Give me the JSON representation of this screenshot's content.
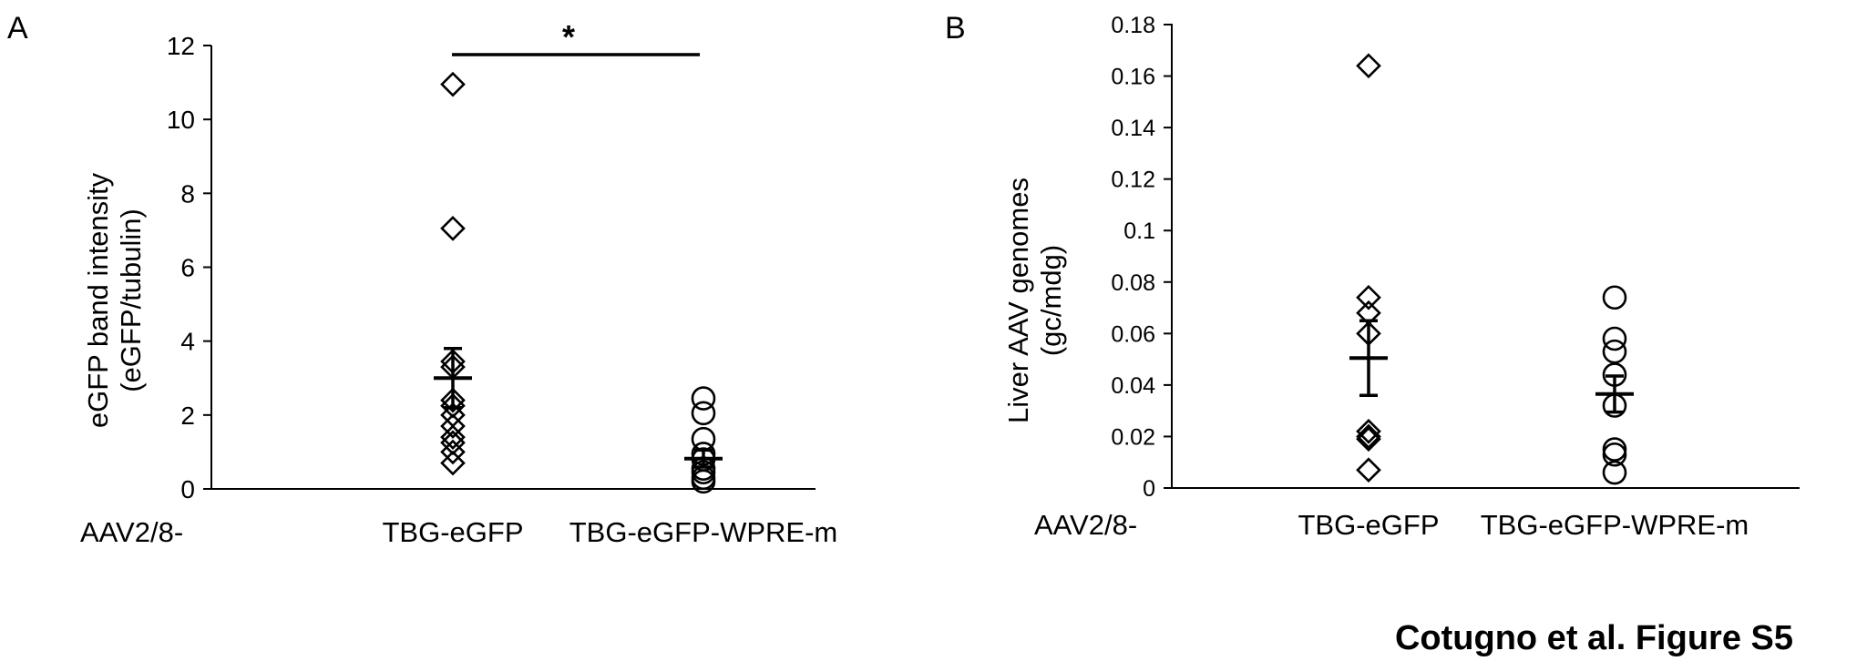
{
  "figure_caption": "Cotugno et al. Figure S5",
  "chart_data": [
    {
      "panel_label": "A",
      "type": "scatter",
      "categories": [
        "TBG-eGFP",
        "TBG-eGFP-WPRE-m"
      ],
      "category_prefix": "AAV2/8-",
      "ylabel_lines": [
        "eGFP band intensity",
        "(eGFP/tubulin)"
      ],
      "ylim": [
        0,
        12
      ],
      "yticks": [
        0,
        2,
        4,
        6,
        8,
        10,
        12
      ],
      "series": [
        {
          "category": "TBG-eGFP",
          "marker": "diamond",
          "values": [
            10.95,
            7.05,
            3.45,
            3.3,
            2.4,
            2.25,
            2.0,
            1.7,
            1.4,
            1.25,
            1.0,
            0.7
          ],
          "mean": 3.0,
          "sem_upper": 3.8,
          "sem_lower": 2.2
        },
        {
          "category": "TBG-eGFP-WPRE-m",
          "marker": "circle",
          "values": [
            2.45,
            2.05,
            1.35,
            0.95,
            0.8,
            0.55,
            0.45,
            0.3,
            0.2
          ],
          "mean": 0.82,
          "sem_upper": 1.05,
          "sem_lower": 0.59
        }
      ],
      "significance": {
        "from": "TBG-eGFP",
        "to": "TBG-eGFP-WPRE-m",
        "y": 11.7,
        "label": "*"
      }
    },
    {
      "panel_label": "B",
      "type": "scatter",
      "categories": [
        "TBG-eGFP",
        "TBG-eGFP-WPRE-m"
      ],
      "category_prefix": "AAV2/8-",
      "ylabel_lines": [
        "Liver AAV genomes",
        "(gc/mdg)"
      ],
      "ylim": [
        0,
        0.18
      ],
      "yticks": [
        "0",
        "0.02",
        "0.04",
        "0.06",
        "0.08",
        "0.1",
        "0.12",
        "0.14",
        "0.16",
        "0.18"
      ],
      "series": [
        {
          "category": "TBG-eGFP",
          "marker": "diamond",
          "values": [
            0.164,
            0.074,
            0.068,
            0.06,
            0.022,
            0.02,
            0.019,
            0.007
          ],
          "mean": 0.0505,
          "sem_upper": 0.065,
          "sem_lower": 0.036
        },
        {
          "category": "TBG-eGFP-WPRE-m",
          "marker": "circle",
          "values": [
            0.074,
            0.058,
            0.053,
            0.044,
            0.032,
            0.015,
            0.013,
            0.006
          ],
          "mean": 0.0365,
          "sem_upper": 0.0435,
          "sem_lower": 0.0295
        }
      ]
    }
  ]
}
